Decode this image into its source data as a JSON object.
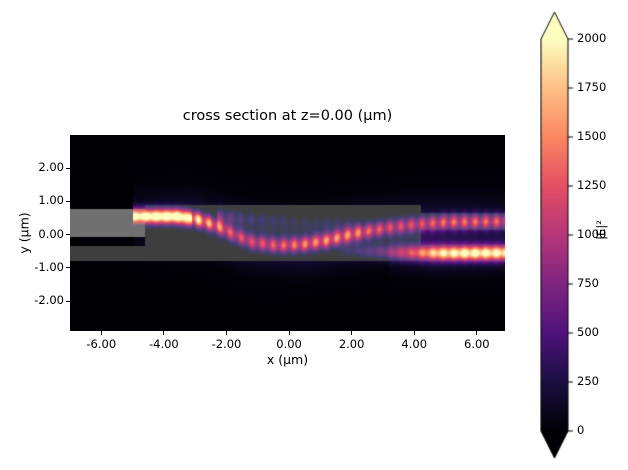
{
  "chart_data": {
    "type": "heatmap",
    "title": "cross section at z=0.00 (μm)",
    "xlabel": "x (μm)",
    "ylabel": "y (μm)",
    "xlim": [
      -7.0,
      6.9
    ],
    "ylim": [
      -2.9,
      3.0
    ],
    "grid": false,
    "xticks": [
      -6,
      -4,
      -2,
      0,
      2,
      4,
      6
    ],
    "xtick_labels": [
      "-6.00",
      "-4.00",
      "-2.00",
      "0.00",
      "2.00",
      "4.00",
      "6.00"
    ],
    "yticks": [
      2,
      1,
      0,
      -1,
      -2
    ],
    "ytick_labels": [
      "2.00",
      "1.00",
      "0.00",
      "-1.00",
      "-2.00"
    ],
    "colormap": "magma",
    "colormap_stops": [
      [
        0.0,
        [
          0,
          0,
          4
        ]
      ],
      [
        0.13,
        [
          28,
          16,
          68
        ]
      ],
      [
        0.25,
        [
          79,
          18,
          123
        ]
      ],
      [
        0.38,
        [
          129,
          37,
          129
        ]
      ],
      [
        0.5,
        [
          181,
          54,
          122
        ]
      ],
      [
        0.63,
        [
          229,
          80,
          100
        ]
      ],
      [
        0.75,
        [
          251,
          135,
          97
        ]
      ],
      [
        0.88,
        [
          254,
          194,
          135
        ]
      ],
      [
        1.0,
        [
          252,
          253,
          191
        ]
      ]
    ],
    "colorbar": {
      "label": "|E|²",
      "vmin": 0,
      "vmax": 2000,
      "ticks": [
        0,
        250,
        500,
        750,
        1000,
        1250,
        1500,
        1750,
        2000
      ],
      "tick_labels": [
        "0",
        "250",
        "500",
        "750",
        "1000",
        "1250",
        "1500",
        "1750",
        "2000"
      ],
      "extend": "both"
    },
    "structure_overlay": [
      {
        "name": "input-waveguide-upper",
        "x0": -7.0,
        "x1": -4.6,
        "y0": -0.08,
        "y1": 0.78,
        "gray": 112
      },
      {
        "name": "input-waveguide-lower",
        "x0": -7.0,
        "x1": -4.6,
        "y0": -0.78,
        "y1": -0.35,
        "gray": 62
      },
      {
        "name": "coupler-slab",
        "x0": -4.6,
        "x1": 4.2,
        "y0": -0.78,
        "y1": 0.88,
        "gray": 62
      },
      {
        "name": "output-waveguide-upper",
        "x0": 4.2,
        "x1": 6.9,
        "y0": 0.14,
        "y1": 0.66,
        "gray": 62
      },
      {
        "name": "output-waveguide-lower",
        "x0": 4.2,
        "x1": 6.9,
        "y0": -0.8,
        "y1": -0.3,
        "gray": 62
      }
    ],
    "field_beams": [
      {
        "name": "main-mode",
        "sigma": 0.16,
        "bead_period": 0.34,
        "bead_depth": 0.45,
        "bead_depth_pre": 0.12,
        "bead_start": -3.1,
        "points": [
          [
            -5.0,
            0.55,
            2150
          ],
          [
            -3.6,
            0.55,
            2150
          ],
          [
            -3.0,
            0.48,
            1900
          ],
          [
            -2.4,
            0.3,
            1400
          ],
          [
            -1.8,
            0.02,
            1050
          ],
          [
            -1.2,
            -0.22,
            1000
          ],
          [
            -0.4,
            -0.33,
            1100
          ],
          [
            0.4,
            -0.3,
            1250
          ],
          [
            1.2,
            -0.18,
            1350
          ],
          [
            1.9,
            -0.02,
            1300
          ],
          [
            2.6,
            0.12,
            1150
          ],
          [
            3.4,
            0.24,
            1000
          ],
          [
            4.2,
            0.32,
            1050
          ],
          [
            5.0,
            0.38,
            1250
          ],
          [
            6.9,
            0.4,
            1250
          ]
        ]
      },
      {
        "name": "lower-output-mode",
        "sigma": 0.16,
        "bead_period": 0.34,
        "bead_depth": 0.18,
        "bead_start": 1.6,
        "points": [
          [
            1.6,
            -0.5,
            120
          ],
          [
            2.4,
            -0.52,
            380
          ],
          [
            3.2,
            -0.54,
            700
          ],
          [
            4.0,
            -0.55,
            1150
          ],
          [
            4.8,
            -0.56,
            1750
          ],
          [
            5.6,
            -0.56,
            1950
          ],
          [
            6.9,
            -0.55,
            1950
          ]
        ]
      },
      {
        "name": "upper-residual",
        "sigma": 0.19,
        "bead_period": 0.34,
        "bead_depth": 0.4,
        "bead_start": -2.3,
        "points": [
          [
            -2.3,
            0.55,
            520
          ],
          [
            -1.4,
            0.5,
            360
          ],
          [
            -0.5,
            0.45,
            270
          ],
          [
            0.5,
            0.4,
            220
          ],
          [
            1.5,
            0.32,
            190
          ],
          [
            2.3,
            0.22,
            140
          ]
        ]
      },
      {
        "name": "halo-main",
        "sigma": 0.55,
        "points": [
          [
            -5.0,
            0.5,
            140
          ],
          [
            -3.0,
            0.4,
            260
          ],
          [
            -1.5,
            -0.1,
            300
          ],
          [
            0.5,
            -0.25,
            320
          ],
          [
            2.0,
            0.0,
            320
          ],
          [
            4.0,
            0.25,
            250
          ],
          [
            6.9,
            0.35,
            170
          ]
        ]
      },
      {
        "name": "halo-lower",
        "sigma": 0.4,
        "points": [
          [
            3.2,
            -0.5,
            120
          ],
          [
            4.6,
            -0.55,
            240
          ],
          [
            6.9,
            -0.55,
            200
          ]
        ]
      }
    ]
  }
}
